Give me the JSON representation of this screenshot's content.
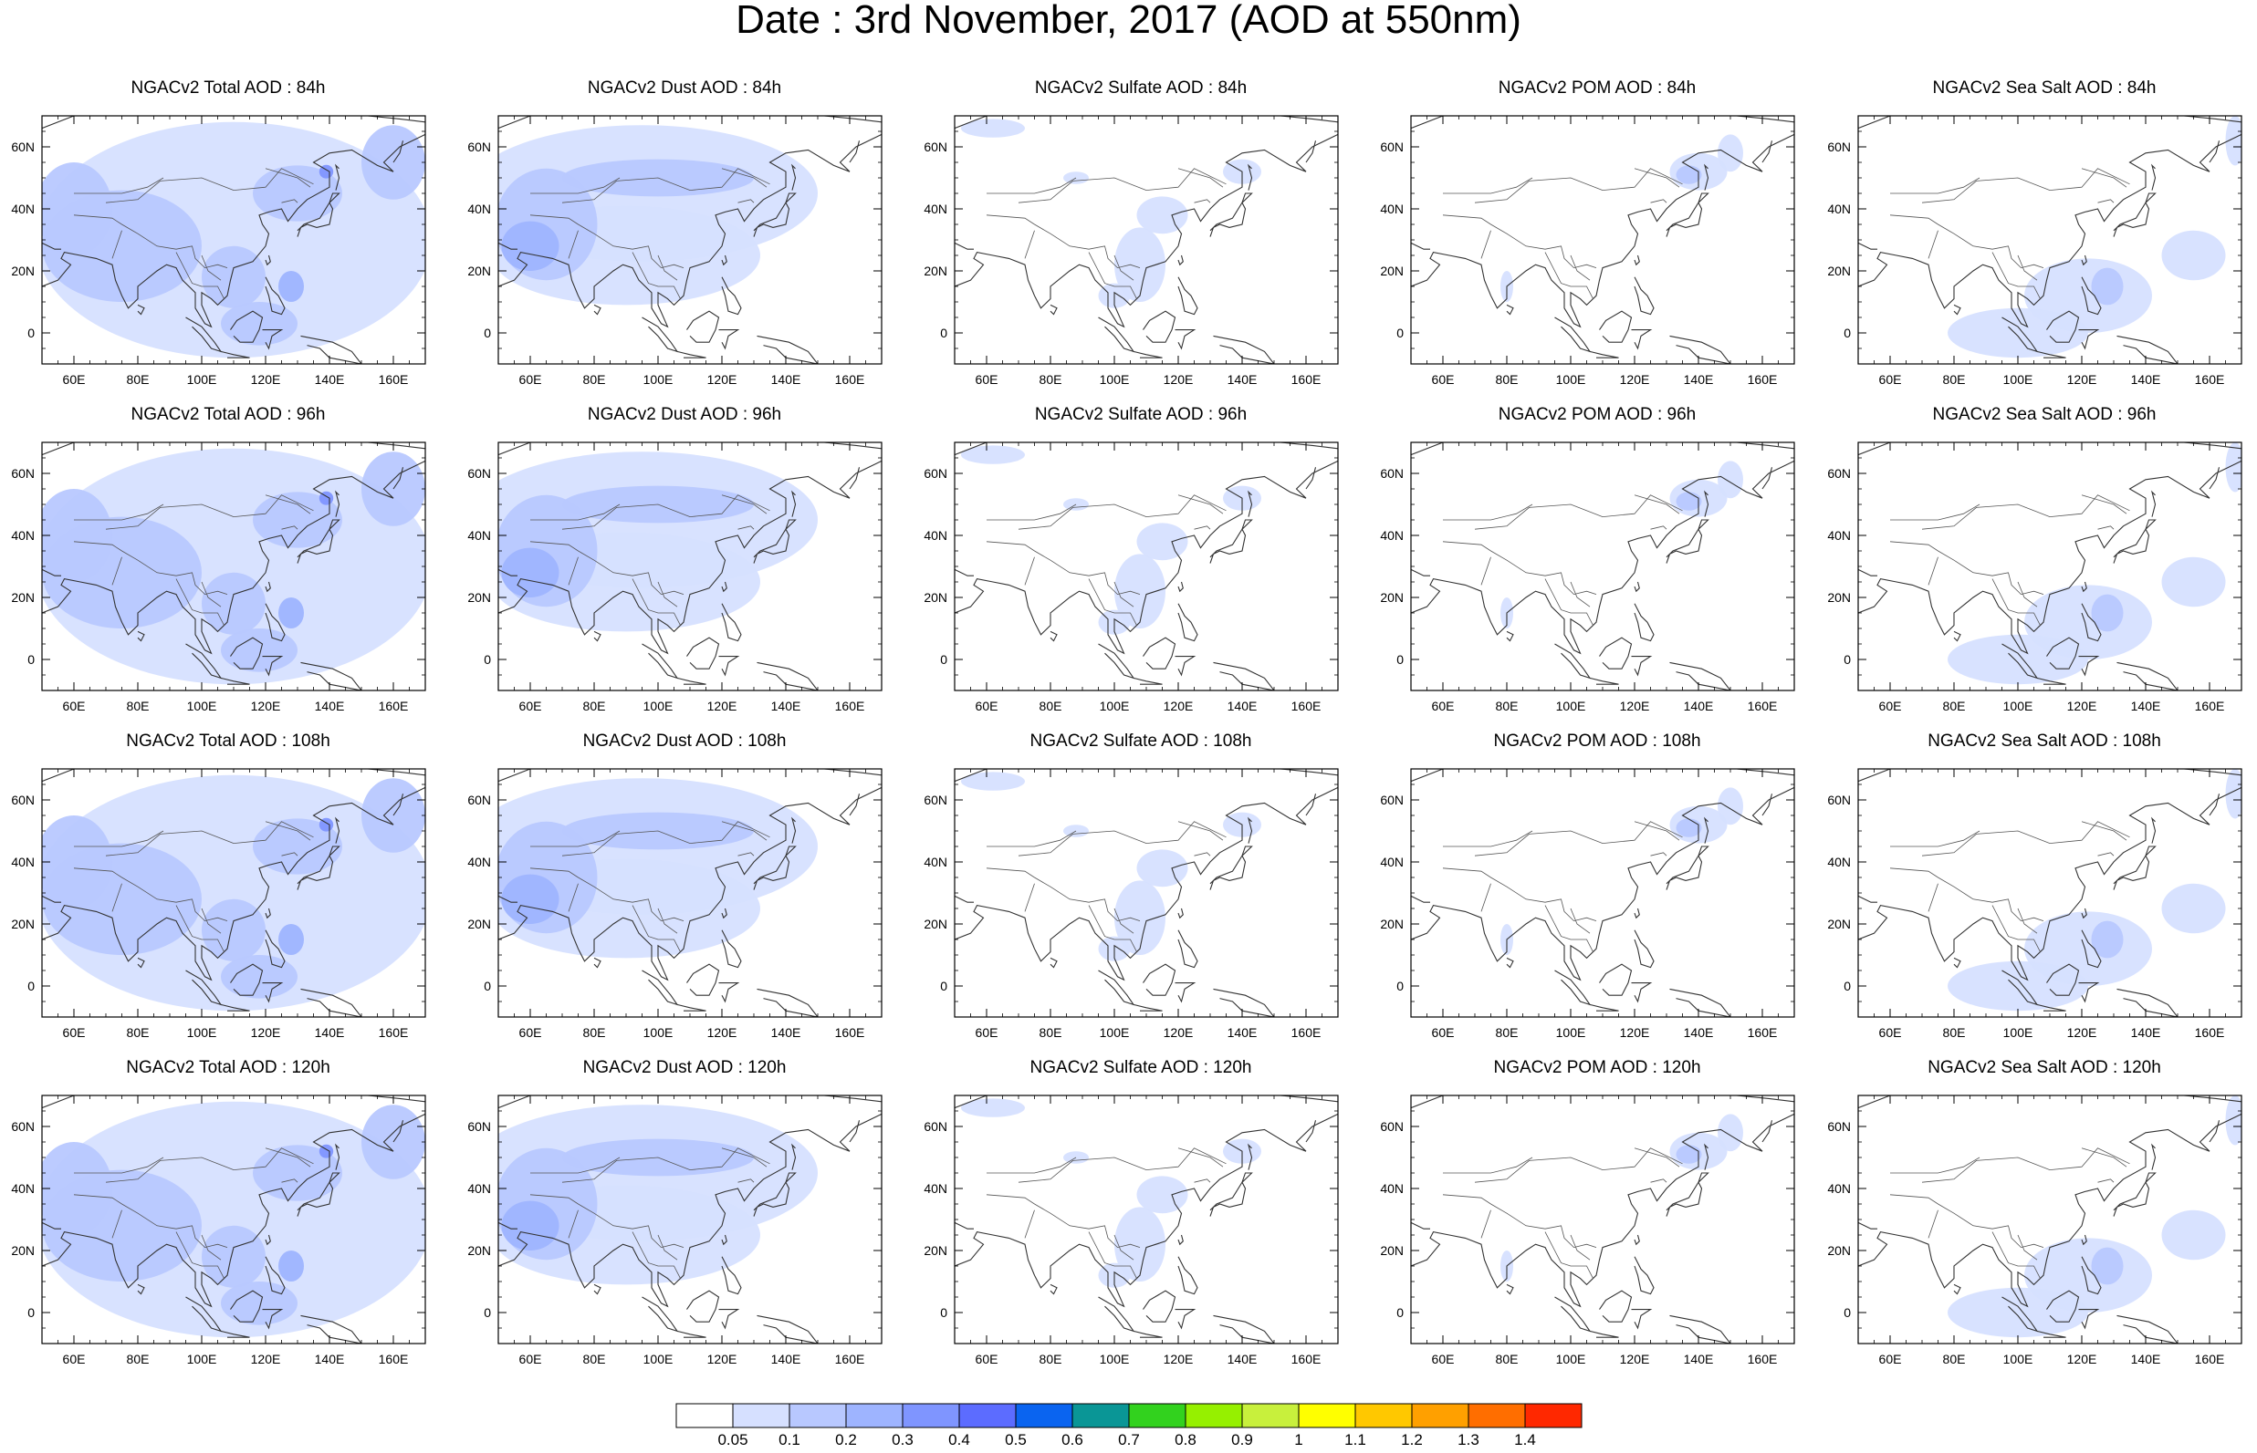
{
  "title": "Date : 3rd November, 2017 (AOD at 550nm)",
  "lat_ticks": [
    {
      "v": 60,
      "label": "60N"
    },
    {
      "v": 40,
      "label": "40N"
    },
    {
      "v": 20,
      "label": "20N"
    },
    {
      "v": 0,
      "label": "0"
    }
  ],
  "lon_ticks": [
    {
      "v": 60,
      "label": "60E"
    },
    {
      "v": 80,
      "label": "80E"
    },
    {
      "v": 100,
      "label": "100E"
    },
    {
      "v": 120,
      "label": "120E"
    },
    {
      "v": 140,
      "label": "140E"
    },
    {
      "v": 160,
      "label": "160E"
    }
  ],
  "map_extent": {
    "lon_min": 50,
    "lon_max": 170,
    "lat_min": -10,
    "lat_max": 70
  },
  "panels": [
    {
      "title": "NGACv2 Total AOD : 84h",
      "type": "total"
    },
    {
      "title": "NGACv2 Dust AOD : 84h",
      "type": "dust"
    },
    {
      "title": "NGACv2 Sulfate AOD : 84h",
      "type": "sulfate"
    },
    {
      "title": "NGACv2 POM AOD : 84h",
      "type": "pom"
    },
    {
      "title": "NGACv2 Sea Salt AOD : 84h",
      "type": "seasalt"
    },
    {
      "title": "NGACv2 Total AOD : 96h",
      "type": "total"
    },
    {
      "title": "NGACv2 Dust AOD : 96h",
      "type": "dust"
    },
    {
      "title": "NGACv2 Sulfate AOD : 96h",
      "type": "sulfate"
    },
    {
      "title": "NGACv2 POM AOD : 96h",
      "type": "pom"
    },
    {
      "title": "NGACv2 Sea Salt AOD : 96h",
      "type": "seasalt"
    },
    {
      "title": "NGACv2 Total AOD : 108h",
      "type": "total"
    },
    {
      "title": "NGACv2 Dust AOD : 108h",
      "type": "dust"
    },
    {
      "title": "NGACv2 Sulfate AOD : 108h",
      "type": "sulfate"
    },
    {
      "title": "NGACv2 POM AOD : 108h",
      "type": "pom"
    },
    {
      "title": "NGACv2 Sea Salt AOD : 108h",
      "type": "seasalt"
    },
    {
      "title": "NGACv2 Total AOD : 120h",
      "type": "total"
    },
    {
      "title": "NGACv2 Dust AOD : 120h",
      "type": "dust"
    },
    {
      "title": "NGACv2 Sulfate AOD : 120h",
      "type": "sulfate"
    },
    {
      "title": "NGACv2 POM AOD : 120h",
      "type": "pom"
    },
    {
      "title": "NGACv2 Sea Salt  AOD : 120h",
      "type": "seasalt"
    }
  ],
  "colorbar": {
    "labels": [
      "0.05",
      "0.1",
      "0.2",
      "0.3",
      "0.4",
      "0.5",
      "0.6",
      "0.7",
      "0.8",
      "0.9",
      "1",
      "1.1",
      "1.2",
      "1.3",
      "1.4"
    ],
    "colors": [
      "#ffffff",
      "#d6e0ff",
      "#b8c8ff",
      "#9eb4ff",
      "#7f95ff",
      "#5c6cff",
      "#0a64f0",
      "#0a9696",
      "#32d21e",
      "#96f000",
      "#c8f03c",
      "#ffff00",
      "#ffc800",
      "#ffa000",
      "#ff6e00",
      "#ff2800"
    ]
  }
}
